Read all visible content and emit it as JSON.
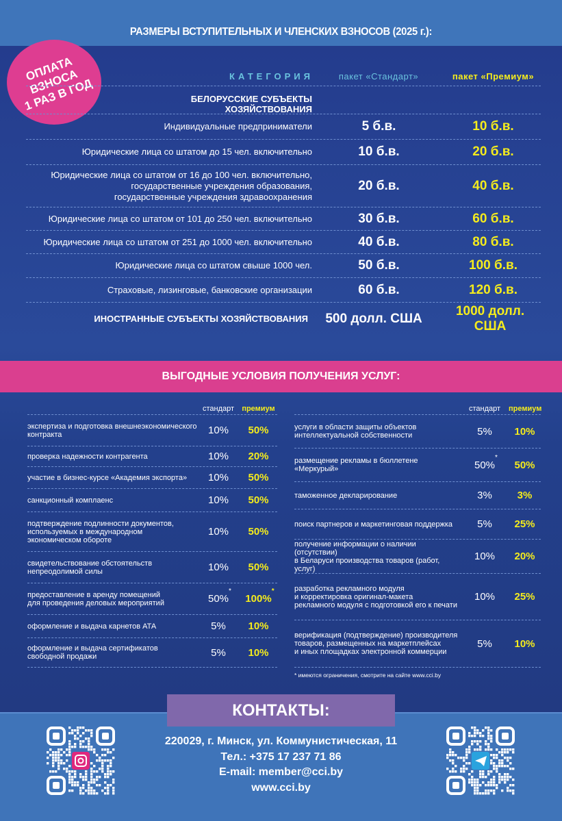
{
  "title": "РАЗМЕРЫ ВСТУПИТЕЛЬНЫХ И ЧЛЕНСКИХ ВЗНОСОВ (2025 г.):",
  "badge": "ОПЛАТА\nВЗНОСА\n1 РАЗ В ГОД",
  "fees": {
    "headers": {
      "category": "КАТЕГОРИЯ",
      "standard": "пакет «Стандарт»",
      "premium": "пакет «Премиум»"
    },
    "section_by": "БЕЛОРУССКИЕ СУБЪЕКТЫ ХОЗЯЙСТВОВАНИЯ",
    "rows": [
      {
        "label": "Индивидуальные предприниматели",
        "standard": "5 б.в.",
        "premium": "10 б.в."
      },
      {
        "label": "Юридические лица со штатом до 15 чел. включительно",
        "standard": "10 б.в.",
        "premium": "20 б.в."
      },
      {
        "label": "Юридические лица со штатом от 16 до 100 чел. включительно,\nгосударственные учреждения образования,\nгосударственные учреждения здравоохранения",
        "standard": "20 б.в.",
        "premium": "40 б.в."
      },
      {
        "label": "Юридические лица со штатом от 101 до 250 чел. включительно",
        "standard": "30 б.в.",
        "premium": "60 б.в."
      },
      {
        "label": "Юридические лица со штатом от 251 до 1000 чел. включительно",
        "standard": "40 б.в.",
        "premium": "80 б.в."
      },
      {
        "label": "Юридические лица со штатом свыше 1000 чел.",
        "standard": "50 б.в.",
        "premium": "100 б.в."
      },
      {
        "label": "Страховые, лизинговые, банковские организации",
        "standard": "60 б.в.",
        "premium": "120 б.в."
      }
    ],
    "foreign": {
      "label": "ИНОСТРАННЫЕ СУБЪЕКТЫ ХОЗЯЙСТВОВАНИЯ",
      "standard": "500 долл. США",
      "premium": "1000 долл. США"
    }
  },
  "services": {
    "title": "ВЫГОДНЫЕ УСЛОВИЯ ПОЛУЧЕНИЯ УСЛУГ:",
    "col_standard": "стандарт",
    "col_premium": "премиум",
    "left": [
      {
        "label": "экспертиза и подготовка внешнеэкономического\nконтракта",
        "standard": "10%",
        "premium": "50%"
      },
      {
        "label": "проверка надежности контрагента",
        "standard": "10%",
        "premium": "20%"
      },
      {
        "label": "участие в бизнес-курсе «Академия экспорта»",
        "standard": "10%",
        "premium": "50%"
      },
      {
        "label": "санкционный комплаенс",
        "standard": "10%",
        "premium": "50%"
      },
      {
        "label": "подтверждение подлинности документов,\nиспользуемых в международном\nэкономическом обороте",
        "standard": "10%",
        "premium": "50%"
      },
      {
        "label": "свидетельствование обстоятельств\nнепреодолимой силы",
        "standard": "10%",
        "premium": "50%"
      },
      {
        "label": "предоставление в аренду помещений\nдля проведения деловых мероприятий",
        "standard": "50%",
        "premium": "100%",
        "standard_note": "*",
        "premium_note": "*"
      },
      {
        "label": "оформление и выдача карнетов АТА",
        "standard": "5%",
        "premium": "10%"
      },
      {
        "label": "оформление и выдача сертификатов\nсвободной продажи",
        "standard": "5%",
        "premium": "10%"
      }
    ],
    "right": [
      {
        "label": "услуги в области защиты объектов\nинтеллектуальной собственности",
        "standard": "5%",
        "premium": "10%"
      },
      {
        "label": "размещение рекламы в бюллетене\n«Меркурый»",
        "standard": "50%",
        "premium": "50%",
        "standard_note": "*"
      },
      {
        "label": "таможенное декларирование",
        "standard": "3%",
        "premium": "3%"
      },
      {
        "label": "поиск партнеров и маркетинговая поддержка",
        "standard": "5%",
        "premium": "25%"
      },
      {
        "label": "получение информации о наличии (отсутствии)\nв Беларуси производства товаров (работ, услуг)",
        "standard": "10%",
        "premium": "20%"
      },
      {
        "label": "разработка рекламного модуля\nи корректировка оригинал-макета\nрекламного модуля с подготовкой его к печати",
        "standard": "10%",
        "premium": "25%"
      },
      {
        "label": "верификация (подтверждение) производителя\nтоваров, размещенных на маркетплейсах\nи иных площадках электронной коммерции",
        "standard": "5%",
        "premium": "10%"
      }
    ],
    "footnote": "* имеются ограничения, смотрите на сайте www.cci.by"
  },
  "contacts": {
    "title": "КОНТАКТЫ:",
    "address": "220029, г. Минск, ул. Коммунистическая, 11",
    "phone": "Тел.: +375 17 237 71 86",
    "email": "E-mail: member@cci.by",
    "website": "www.cci.by",
    "qr_left_icon": "instagram-icon",
    "qr_right_icon": "telegram-icon"
  },
  "colors": {
    "accent_yellow": "#f5ec1c",
    "pink": "#da3f8f",
    "navy": "#253d8c",
    "light_blue": "#3f74b9",
    "purple": "#8068ab",
    "category_cyan": "#6ac3de"
  }
}
